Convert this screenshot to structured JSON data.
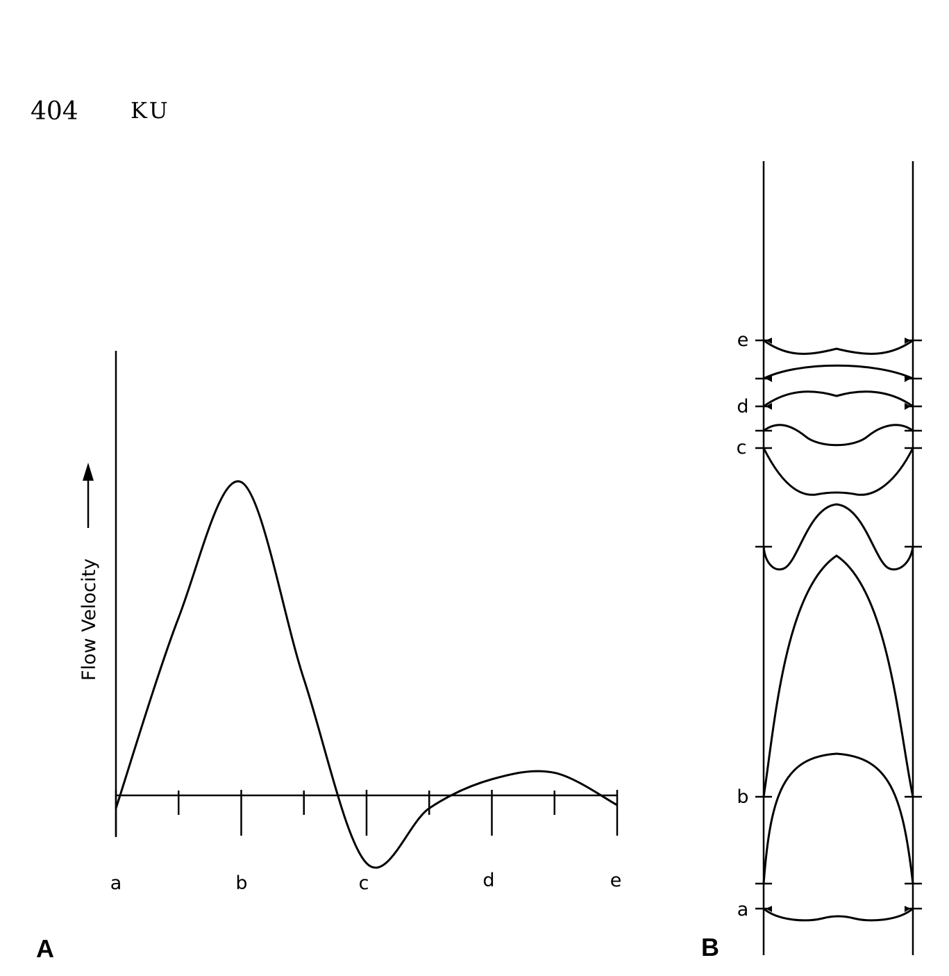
{
  "header": {
    "page_number": "404",
    "running_head": "KU"
  },
  "figure": {
    "panel_a": {
      "label": "A",
      "ylabel": "Flow Velocity",
      "x_labels": [
        "a",
        "b",
        "c",
        "d",
        "e"
      ]
    },
    "panel_b": {
      "label": "B",
      "level_labels": [
        "e",
        "d",
        "c",
        "b",
        "a"
      ]
    }
  },
  "chart_data": {
    "type": "line",
    "title": "",
    "xlabel": "",
    "ylabel": "Flow Velocity",
    "categories": [
      "a",
      "b",
      "c",
      "d",
      "e"
    ],
    "note_axis": "y axis has no numeric scale; values relative (peak = 1)",
    "x": [
      0,
      0.5,
      1.0,
      1.5,
      2.0,
      2.5,
      3.0,
      3.5,
      4.0
    ],
    "series": [
      {
        "values": [
          -0.04,
          0.55,
          0.97,
          0.36,
          -0.21,
          -0.04,
          0.05,
          0.07,
          -0.03
        ]
      }
    ]
  }
}
